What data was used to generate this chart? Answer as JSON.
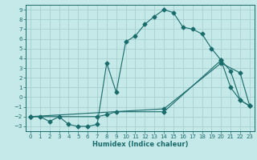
{
  "xlabel": "Humidex (Indice chaleur)",
  "bg_color": "#c5e8e8",
  "grid_color": "#a8d0d0",
  "line_color": "#1a6b6b",
  "xlim": [
    -0.5,
    23.5
  ],
  "ylim": [
    -3.5,
    9.5
  ],
  "xticks": [
    0,
    1,
    2,
    3,
    4,
    5,
    6,
    7,
    8,
    9,
    10,
    11,
    12,
    13,
    14,
    15,
    16,
    17,
    18,
    19,
    20,
    21,
    22,
    23
  ],
  "yticks": [
    -3,
    -2,
    -1,
    0,
    1,
    2,
    3,
    4,
    5,
    6,
    7,
    8,
    9
  ],
  "line1_x": [
    0,
    1,
    2,
    3,
    4,
    5,
    6,
    7,
    8,
    9,
    10,
    11,
    12,
    13,
    14,
    15,
    16,
    17,
    18,
    19,
    20,
    21,
    22,
    23
  ],
  "line1_y": [
    -2.0,
    -2.0,
    -2.5,
    -2.0,
    -2.8,
    -3.0,
    -3.0,
    -2.8,
    3.5,
    0.5,
    5.7,
    6.3,
    7.5,
    8.3,
    9.0,
    8.7,
    7.2,
    7.0,
    6.5,
    5.0,
    3.8,
    1.0,
    -0.3,
    -0.9
  ],
  "line2_x": [
    0,
    7,
    8,
    9,
    14,
    20,
    21,
    22,
    23
  ],
  "line2_y": [
    -2.0,
    -2.0,
    -1.8,
    -1.5,
    -1.5,
    3.8,
    2.7,
    -0.3,
    -0.9
  ],
  "line3_x": [
    0,
    14,
    20,
    22,
    23
  ],
  "line3_y": [
    -2.0,
    -1.2,
    3.5,
    2.5,
    -0.9
  ],
  "markersize": 2.5
}
